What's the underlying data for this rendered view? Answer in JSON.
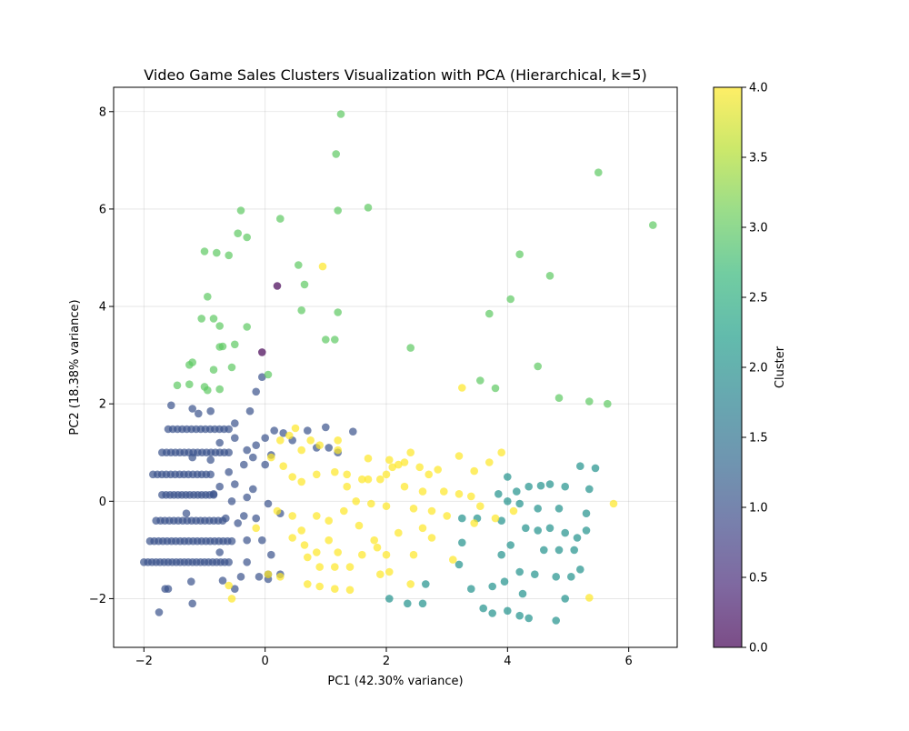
{
  "chart_data": {
    "type": "scatter",
    "title": "Video Game Sales Clusters Visualization with PCA (Hierarchical, k=5)",
    "xlabel": "PC1 (42.30% variance)",
    "ylabel": "PC2 (18.38% variance)",
    "xlim": [
      -2.5,
      6.8
    ],
    "ylim": [
      -3.0,
      8.5
    ],
    "x_ticks": [
      -2,
      0,
      2,
      4,
      6
    ],
    "x_tick_labels": [
      "−2",
      "0",
      "2",
      "4",
      "6"
    ],
    "y_ticks": [
      -2,
      0,
      2,
      4,
      6,
      8
    ],
    "y_tick_labels": [
      "−2",
      "0",
      "2",
      "4",
      "6",
      "8"
    ],
    "grid": true,
    "colormap": "viridis",
    "colorbar": {
      "label": "Cluster",
      "range": [
        0.0,
        4.0
      ],
      "ticks": [
        0.0,
        0.5,
        1.0,
        1.5,
        2.0,
        2.5,
        3.0,
        3.5,
        4.0
      ],
      "tick_labels": [
        "0.0",
        "0.5",
        "1.0",
        "1.5",
        "2.0",
        "2.5",
        "3.0",
        "3.5",
        "4.0"
      ]
    },
    "cluster_colors": {
      "0": "#440154",
      "1": "#3b528b",
      "2": "#21918c",
      "3": "#5ec962",
      "4": "#fde725"
    },
    "series": [
      {
        "cluster": 0,
        "points": [
          [
            0.2,
            4.42
          ],
          [
            -0.05,
            3.06
          ]
        ]
      },
      {
        "cluster": 1,
        "points": [
          [
            -1.75,
            -2.28
          ],
          [
            -1.2,
            -2.1
          ],
          [
            -1.6,
            -1.8
          ],
          [
            -1.65,
            -1.8
          ],
          [
            -1.22,
            -1.65
          ],
          [
            -0.5,
            -1.8
          ],
          [
            -0.7,
            -1.63
          ],
          [
            -0.4,
            -1.55
          ],
          [
            0.05,
            -1.6
          ],
          [
            -0.1,
            -1.55
          ],
          [
            -0.75,
            -1.05
          ],
          [
            -0.3,
            -0.8
          ],
          [
            -0.05,
            -0.8
          ],
          [
            0.1,
            -1.1
          ],
          [
            -1.3,
            -0.25
          ],
          [
            -0.65,
            -0.35
          ],
          [
            -0.45,
            -0.45
          ],
          [
            -0.35,
            -0.3
          ],
          [
            -0.15,
            -0.35
          ],
          [
            0.25,
            -0.25
          ],
          [
            -0.55,
            0.0
          ],
          [
            -0.3,
            0.08
          ],
          [
            0.05,
            -0.05
          ],
          [
            -0.85,
            0.15
          ],
          [
            -0.75,
            0.3
          ],
          [
            -0.5,
            0.35
          ],
          [
            -0.2,
            0.25
          ],
          [
            -0.6,
            0.6
          ],
          [
            -0.35,
            0.75
          ],
          [
            -0.2,
            0.9
          ],
          [
            0.0,
            0.75
          ],
          [
            -0.9,
            0.85
          ],
          [
            -0.75,
            1.2
          ],
          [
            -0.5,
            1.3
          ],
          [
            -0.3,
            1.05
          ],
          [
            -0.15,
            1.15
          ],
          [
            0.0,
            1.3
          ],
          [
            0.15,
            1.45
          ],
          [
            0.3,
            1.4
          ],
          [
            0.45,
            1.25
          ],
          [
            0.7,
            1.45
          ],
          [
            0.85,
            1.1
          ],
          [
            1.05,
            1.1
          ],
          [
            1.2,
            1.0
          ],
          [
            1.45,
            1.43
          ],
          [
            1.0,
            1.52
          ],
          [
            -0.5,
            1.6
          ],
          [
            -0.25,
            1.85
          ],
          [
            -0.15,
            2.25
          ],
          [
            -0.05,
            2.55
          ],
          [
            -1.55,
            1.97
          ],
          [
            -1.2,
            1.9
          ],
          [
            -1.1,
            1.8
          ],
          [
            -0.9,
            1.85
          ],
          [
            -1.2,
            0.9
          ],
          [
            0.1,
            0.95
          ],
          [
            -0.3,
            -1.25
          ],
          [
            0.25,
            -1.5
          ],
          [
            0.05,
            -1.5
          ]
        ],
        "rows": [
          {
            "y": -1.25,
            "x_start": -2.0,
            "x_end": -0.6,
            "n": 22
          },
          {
            "y": -0.82,
            "x_start": -1.9,
            "x_end": -0.55,
            "n": 20
          },
          {
            "y": -0.4,
            "x_start": -1.8,
            "x_end": -0.7,
            "n": 16
          },
          {
            "y": 0.13,
            "x_start": -1.7,
            "x_end": -0.85,
            "n": 14
          },
          {
            "y": 0.55,
            "x_start": -1.85,
            "x_end": -0.9,
            "n": 14
          },
          {
            "y": 1.0,
            "x_start": -1.7,
            "x_end": -0.6,
            "n": 16
          },
          {
            "y": 1.48,
            "x_start": -1.6,
            "x_end": -0.6,
            "n": 14
          }
        ]
      },
      {
        "cluster": 2,
        "points": [
          [
            2.05,
            -2.0
          ],
          [
            2.35,
            -2.1
          ],
          [
            2.6,
            -2.1
          ],
          [
            2.65,
            -1.7
          ],
          [
            3.4,
            -1.8
          ],
          [
            3.6,
            -2.2
          ],
          [
            3.75,
            -2.3
          ],
          [
            4.0,
            -2.25
          ],
          [
            4.2,
            -2.35
          ],
          [
            4.35,
            -2.4
          ],
          [
            4.8,
            -2.45
          ],
          [
            4.95,
            -2.0
          ],
          [
            4.25,
            -1.9
          ],
          [
            3.95,
            -1.65
          ],
          [
            3.75,
            -1.75
          ],
          [
            3.9,
            -1.1
          ],
          [
            4.05,
            -0.9
          ],
          [
            4.2,
            -1.45
          ],
          [
            4.45,
            -1.5
          ],
          [
            4.8,
            -1.55
          ],
          [
            5.05,
            -1.55
          ],
          [
            5.2,
            -1.4
          ],
          [
            3.25,
            -0.35
          ],
          [
            3.25,
            -0.85
          ],
          [
            3.5,
            -0.35
          ],
          [
            3.9,
            -0.4
          ],
          [
            3.85,
            0.15
          ],
          [
            4.0,
            0.5
          ],
          [
            4.2,
            -0.05
          ],
          [
            4.3,
            -0.55
          ],
          [
            4.5,
            -0.6
          ],
          [
            4.7,
            -0.55
          ],
          [
            4.95,
            -0.65
          ],
          [
            5.3,
            -0.6
          ],
          [
            4.6,
            -1.0
          ],
          [
            4.85,
            -1.0
          ],
          [
            5.1,
            -1.0
          ],
          [
            5.15,
            -0.75
          ],
          [
            5.3,
            -0.25
          ],
          [
            4.7,
            0.35
          ],
          [
            4.95,
            0.3
          ],
          [
            5.35,
            0.25
          ],
          [
            5.45,
            0.68
          ],
          [
            5.2,
            0.72
          ],
          [
            4.55,
            0.32
          ],
          [
            4.35,
            0.3
          ],
          [
            4.15,
            0.2
          ],
          [
            4.0,
            0.0
          ],
          [
            4.85,
            -0.15
          ],
          [
            4.5,
            -0.15
          ],
          [
            3.2,
            -1.3
          ]
        ]
      },
      {
        "cluster": 3,
        "points": [
          [
            1.25,
            7.95
          ],
          [
            1.17,
            7.13
          ],
          [
            1.2,
            5.97
          ],
          [
            1.7,
            6.03
          ],
          [
            0.25,
            5.8
          ],
          [
            -0.4,
            5.97
          ],
          [
            -0.45,
            5.5
          ],
          [
            -0.3,
            5.42
          ],
          [
            -1.0,
            5.13
          ],
          [
            -0.8,
            5.1
          ],
          [
            -0.6,
            5.05
          ],
          [
            0.55,
            4.85
          ],
          [
            0.65,
            4.45
          ],
          [
            0.6,
            3.92
          ],
          [
            1.2,
            3.88
          ],
          [
            1.0,
            3.32
          ],
          [
            1.15,
            3.32
          ],
          [
            -0.95,
            4.2
          ],
          [
            -1.05,
            3.75
          ],
          [
            -0.85,
            3.75
          ],
          [
            -0.75,
            3.6
          ],
          [
            -0.3,
            3.58
          ],
          [
            -0.5,
            3.22
          ],
          [
            -0.75,
            3.17
          ],
          [
            -0.7,
            3.18
          ],
          [
            -1.2,
            2.85
          ],
          [
            -1.25,
            2.8
          ],
          [
            -0.55,
            2.75
          ],
          [
            -0.85,
            2.7
          ],
          [
            -1.25,
            2.4
          ],
          [
            -1.45,
            2.38
          ],
          [
            -1.0,
            2.35
          ],
          [
            -0.95,
            2.28
          ],
          [
            -0.75,
            2.3
          ],
          [
            0.05,
            2.6
          ],
          [
            2.4,
            3.15
          ],
          [
            3.7,
            3.85
          ],
          [
            4.05,
            4.15
          ],
          [
            4.2,
            5.07
          ],
          [
            4.7,
            4.63
          ],
          [
            5.5,
            6.75
          ],
          [
            6.4,
            5.67
          ],
          [
            3.55,
            2.48
          ],
          [
            3.8,
            2.32
          ],
          [
            4.5,
            2.77
          ],
          [
            4.85,
            2.12
          ],
          [
            5.35,
            2.05
          ],
          [
            5.65,
            2.0
          ]
        ]
      },
      {
        "cluster": 4,
        "points": [
          [
            0.95,
            4.82
          ],
          [
            0.25,
            1.25
          ],
          [
            0.4,
            1.35
          ],
          [
            0.5,
            1.5
          ],
          [
            0.6,
            1.05
          ],
          [
            0.75,
            1.25
          ],
          [
            0.9,
            1.15
          ],
          [
            1.2,
            1.25
          ],
          [
            1.2,
            1.05
          ],
          [
            1.35,
            0.55
          ],
          [
            1.7,
            0.88
          ],
          [
            1.7,
            0.45
          ],
          [
            1.9,
            0.45
          ],
          [
            2.05,
            0.85
          ],
          [
            2.1,
            0.7
          ],
          [
            2.2,
            0.75
          ],
          [
            2.3,
            0.8
          ],
          [
            2.4,
            1.0
          ],
          [
            2.55,
            0.7
          ],
          [
            2.7,
            0.55
          ],
          [
            2.85,
            0.65
          ],
          [
            3.2,
            0.93
          ],
          [
            3.45,
            0.62
          ],
          [
            3.7,
            0.8
          ],
          [
            3.9,
            1.0
          ],
          [
            3.25,
            2.33
          ],
          [
            0.1,
            0.9
          ],
          [
            0.3,
            0.72
          ],
          [
            0.45,
            0.5
          ],
          [
            0.6,
            0.4
          ],
          [
            0.85,
            0.55
          ],
          [
            1.15,
            0.6
          ],
          [
            1.35,
            0.3
          ],
          [
            1.6,
            0.45
          ],
          [
            2.0,
            0.55
          ],
          [
            2.3,
            0.3
          ],
          [
            2.6,
            0.2
          ],
          [
            2.95,
            0.2
          ],
          [
            3.2,
            0.15
          ],
          [
            3.4,
            0.1
          ],
          [
            3.55,
            -0.1
          ],
          [
            3.8,
            -0.35
          ],
          [
            4.1,
            -0.2
          ],
          [
            0.2,
            -0.2
          ],
          [
            0.45,
            -0.3
          ],
          [
            0.6,
            -0.6
          ],
          [
            0.85,
            -0.3
          ],
          [
            1.05,
            -0.4
          ],
          [
            1.3,
            -0.2
          ],
          [
            1.5,
            0.0
          ],
          [
            1.75,
            -0.05
          ],
          [
            2.0,
            -0.1
          ],
          [
            2.45,
            -0.15
          ],
          [
            2.75,
            -0.2
          ],
          [
            3.0,
            -0.3
          ],
          [
            3.45,
            -0.45
          ],
          [
            1.55,
            -0.5
          ],
          [
            1.8,
            -0.8
          ],
          [
            2.2,
            -0.65
          ],
          [
            2.6,
            -0.55
          ],
          [
            2.75,
            -0.75
          ],
          [
            0.45,
            -0.75
          ],
          [
            0.65,
            -0.9
          ],
          [
            0.85,
            -1.05
          ],
          [
            1.05,
            -0.8
          ],
          [
            1.2,
            -1.05
          ],
          [
            0.7,
            -1.15
          ],
          [
            0.9,
            -1.35
          ],
          [
            1.15,
            -1.35
          ],
          [
            1.4,
            -1.35
          ],
          [
            1.6,
            -1.1
          ],
          [
            1.85,
            -0.95
          ],
          [
            2.0,
            -1.1
          ],
          [
            2.45,
            -1.1
          ],
          [
            3.1,
            -1.2
          ],
          [
            0.25,
            -1.55
          ],
          [
            0.7,
            -1.7
          ],
          [
            0.9,
            -1.75
          ],
          [
            1.15,
            -1.8
          ],
          [
            1.4,
            -1.82
          ],
          [
            1.9,
            -1.5
          ],
          [
            2.05,
            -1.45
          ],
          [
            2.4,
            -1.7
          ],
          [
            -0.6,
            -1.73
          ],
          [
            -0.55,
            -2.0
          ],
          [
            5.75,
            -0.05
          ],
          [
            5.35,
            -1.98
          ],
          [
            -0.15,
            -0.55
          ],
          [
            0.05,
            -1.5
          ]
        ]
      }
    ]
  }
}
